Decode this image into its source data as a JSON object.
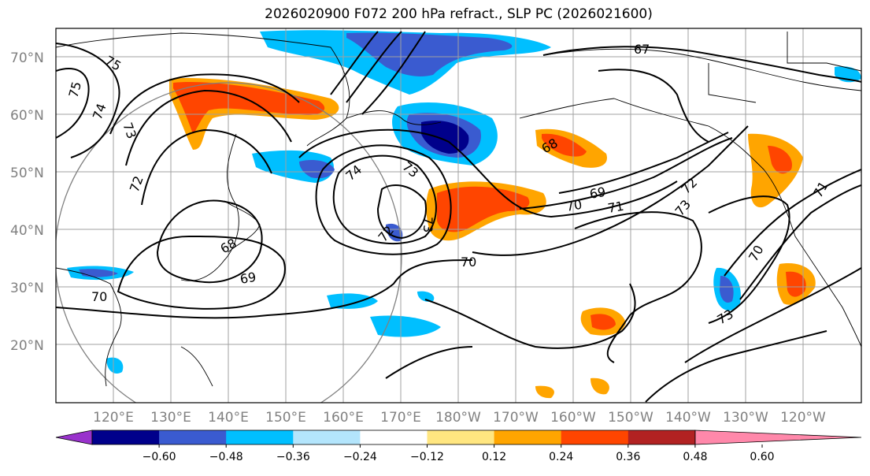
{
  "title": "2026020900 F072 200 hPa refract., SLP PC (2026021600)",
  "lat_labels": [
    "70°N",
    "60°N",
    "50°N",
    "40°N",
    "30°N",
    "20°N"
  ],
  "lon_labels": [
    "120°E",
    "130°E",
    "140°E",
    "150°E",
    "160°E",
    "170°E",
    "180°W",
    "170°W",
    "160°W",
    "150°W",
    "140°W",
    "130°W",
    "120°W"
  ],
  "colorbar": {
    "tick_labels": [
      "−0.60",
      "−0.48",
      "−0.36",
      "−0.24",
      "−0.12",
      "0.12",
      "0.24",
      "0.36",
      "0.48",
      "0.60"
    ],
    "colors": [
      "#9932cc",
      "#00008b",
      "#3a5bd0",
      "#00bfff",
      "#b3e5fc",
      "#ffffff",
      "#ffe680",
      "#ffa500",
      "#ff4500",
      "#b22222",
      "#ff88aa"
    ]
  },
  "contour_labels": [
    "75",
    "75",
    "74",
    "73",
    "72",
    "67",
    "74",
    "73",
    "73",
    "72",
    "68",
    "69",
    "70",
    "70",
    "69",
    "70",
    "71",
    "72",
    "73",
    "70",
    "71",
    "68",
    "73"
  ]
}
